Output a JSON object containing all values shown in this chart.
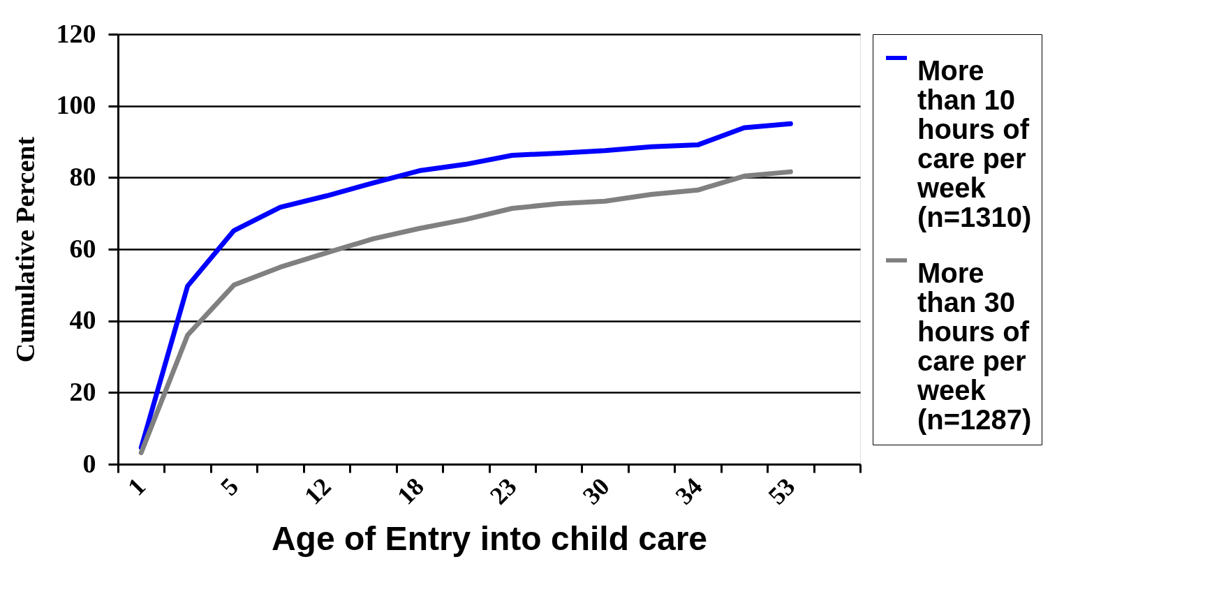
{
  "chart_data": {
    "type": "line",
    "xlabel": "Age of Entry into child care",
    "ylabel": "Cumulative Percent",
    "categories": [
      "1",
      null,
      "5",
      null,
      "12",
      null,
      "18",
      null,
      "23",
      null,
      "30",
      null,
      "34",
      null,
      "53",
      null
    ],
    "series": [
      {
        "name": "More than 10 hours of care per week (n=1310)",
        "color": "#0000ff",
        "values": [
          4.6,
          49.7,
          65.2,
          71.7,
          74.9,
          78.5,
          81.9,
          83.7,
          86.2,
          86.8,
          87.5,
          88.6,
          89.1,
          93.9,
          95.0,
          null
        ]
      },
      {
        "name": "More than 30 hours of care per week (n=1287)",
        "color": "#808080",
        "values": [
          3.2,
          36,
          50,
          55,
          59,
          62.9,
          65.8,
          68.3,
          71.4,
          72.7,
          73.4,
          75.3,
          76.5,
          80.4,
          81.6,
          null
        ]
      }
    ],
    "ylim": [
      0,
      120
    ],
    "yticks": [
      0,
      20,
      40,
      60,
      80,
      100,
      120
    ],
    "grid": "y",
    "legend": "top right",
    "marker": "none",
    "line_style": "solid"
  }
}
